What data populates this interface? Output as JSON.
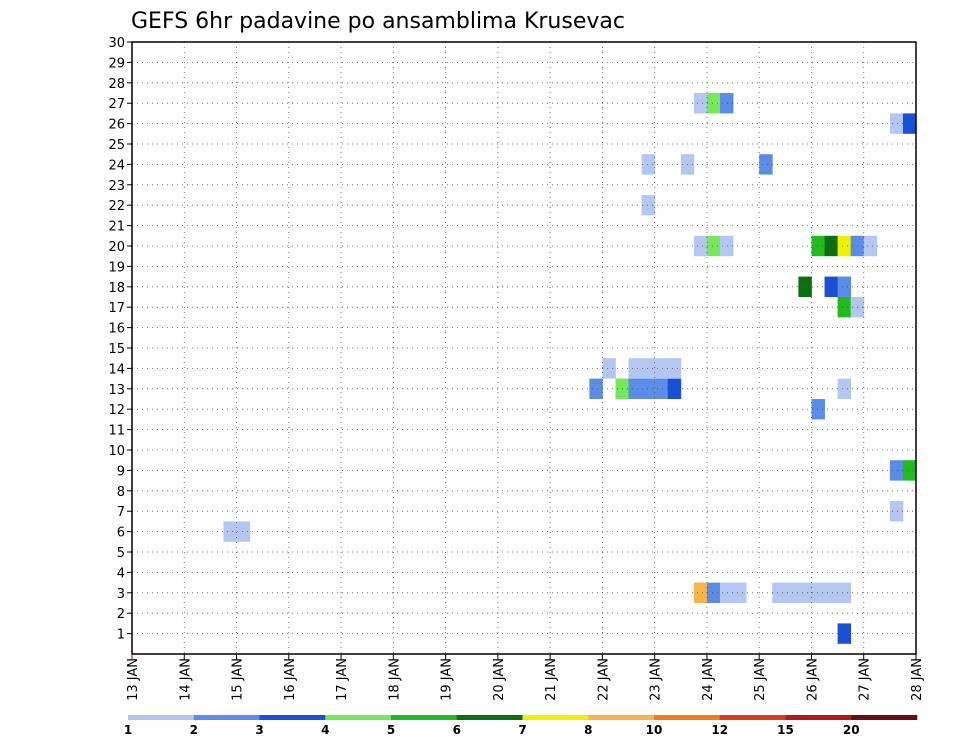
{
  "chart_data": {
    "type": "heatmap",
    "title": "GEFS 6hr padavine po ansamblima Krusevac",
    "xlabel": "",
    "ylabel": "",
    "x_ticks": [
      "13 JAN",
      "14 JAN",
      "15 JAN",
      "16 JAN",
      "17 JAN",
      "18 JAN",
      "19 JAN",
      "20 JAN",
      "21 JAN",
      "22 JAN",
      "23 JAN",
      "24 JAN",
      "25 JAN",
      "26 JAN",
      "27 JAN",
      "28 JAN"
    ],
    "y_ticks": [
      1,
      2,
      3,
      4,
      5,
      6,
      7,
      8,
      9,
      10,
      11,
      12,
      13,
      14,
      15,
      16,
      17,
      18,
      19,
      20,
      21,
      22,
      23,
      24,
      25,
      26,
      27,
      28,
      29,
      30
    ],
    "xlim": [
      0,
      60
    ],
    "ylim": [
      0,
      30
    ],
    "x_unit_note": "6-hour steps from 13 JAN",
    "grid": true,
    "colorbar": {
      "labels": [
        "1",
        "2",
        "3",
        "4",
        "5",
        "6",
        "7",
        "8",
        "10",
        "12",
        "15",
        "20"
      ],
      "colors": [
        "#b4c7f3",
        "#5b8ce8",
        "#1a4fd8",
        "#76e85a",
        "#1fbb1f",
        "#0d7010",
        "#f0f000",
        "#f8b54a",
        "#f27e1b",
        "#e23a1e",
        "#b01c1c",
        "#6a0f0f"
      ]
    },
    "cells": [
      {
        "member": 1,
        "step": 55,
        "color": "#1a4fd8"
      },
      {
        "member": 3,
        "step": 44,
        "color": "#f8b54a"
      },
      {
        "member": 3,
        "step": 45,
        "color": "#5b8ce8"
      },
      {
        "member": 3,
        "step": 46,
        "color": "#b4c7f3"
      },
      {
        "member": 3,
        "step": 47,
        "color": "#b4c7f3"
      },
      {
        "member": 3,
        "step": 50,
        "color": "#b4c7f3"
      },
      {
        "member": 3,
        "step": 51,
        "color": "#b4c7f3"
      },
      {
        "member": 3,
        "step": 52,
        "color": "#b4c7f3"
      },
      {
        "member": 3,
        "step": 53,
        "color": "#b4c7f3"
      },
      {
        "member": 3,
        "step": 54,
        "color": "#b4c7f3"
      },
      {
        "member": 3,
        "step": 55,
        "color": "#b4c7f3"
      },
      {
        "member": 6,
        "step": 8,
        "color": "#b4c7f3"
      },
      {
        "member": 6,
        "step": 9,
        "color": "#b4c7f3"
      },
      {
        "member": 7,
        "step": 59,
        "color": "#b4c7f3"
      },
      {
        "member": 9,
        "step": 59,
        "color": "#5b8ce8"
      },
      {
        "member": 9,
        "step": 60,
        "color": "#1fbb1f"
      },
      {
        "member": 12,
        "step": 53,
        "color": "#5b8ce8"
      },
      {
        "member": 13,
        "step": 36,
        "color": "#5b8ce8"
      },
      {
        "member": 13,
        "step": 38,
        "color": "#76e85a"
      },
      {
        "member": 13,
        "step": 39,
        "color": "#5b8ce8"
      },
      {
        "member": 13,
        "step": 40,
        "color": "#5b8ce8"
      },
      {
        "member": 13,
        "step": 41,
        "color": "#5b8ce8"
      },
      {
        "member": 13,
        "step": 42,
        "color": "#1a4fd8"
      },
      {
        "member": 13,
        "step": 55,
        "color": "#b4c7f3"
      },
      {
        "member": 14,
        "step": 37,
        "color": "#b4c7f3"
      },
      {
        "member": 14,
        "step": 39,
        "color": "#b4c7f3"
      },
      {
        "member": 14,
        "step": 40,
        "color": "#b4c7f3"
      },
      {
        "member": 14,
        "step": 41,
        "color": "#b4c7f3"
      },
      {
        "member": 14,
        "step": 42,
        "color": "#b4c7f3"
      },
      {
        "member": 17,
        "step": 55,
        "color": "#1fbb1f"
      },
      {
        "member": 17,
        "step": 56,
        "color": "#b4c7f3"
      },
      {
        "member": 18,
        "step": 52,
        "color": "#0d7010"
      },
      {
        "member": 18,
        "step": 54,
        "color": "#1a4fd8"
      },
      {
        "member": 18,
        "step": 55,
        "color": "#5b8ce8"
      },
      {
        "member": 20,
        "step": 44,
        "color": "#b4c7f3"
      },
      {
        "member": 20,
        "step": 45,
        "color": "#76e85a"
      },
      {
        "member": 20,
        "step": 46,
        "color": "#b4c7f3"
      },
      {
        "member": 20,
        "step": 53,
        "color": "#1fbb1f"
      },
      {
        "member": 20,
        "step": 54,
        "color": "#0d7010"
      },
      {
        "member": 20,
        "step": 55,
        "color": "#f0f000"
      },
      {
        "member": 20,
        "step": 56,
        "color": "#5b8ce8"
      },
      {
        "member": 20,
        "step": 57,
        "color": "#b4c7f3"
      },
      {
        "member": 22,
        "step": 40,
        "color": "#b4c7f3"
      },
      {
        "member": 24,
        "step": 40,
        "color": "#b4c7f3"
      },
      {
        "member": 24,
        "step": 43,
        "color": "#b4c7f3"
      },
      {
        "member": 24,
        "step": 49,
        "color": "#5b8ce8"
      },
      {
        "member": 26,
        "step": 59,
        "color": "#b4c7f3"
      },
      {
        "member": 26,
        "step": 60,
        "color": "#1a4fd8"
      },
      {
        "member": 27,
        "step": 44,
        "color": "#b4c7f3"
      },
      {
        "member": 27,
        "step": 45,
        "color": "#76e85a"
      },
      {
        "member": 27,
        "step": 46,
        "color": "#5b8ce8"
      }
    ]
  }
}
